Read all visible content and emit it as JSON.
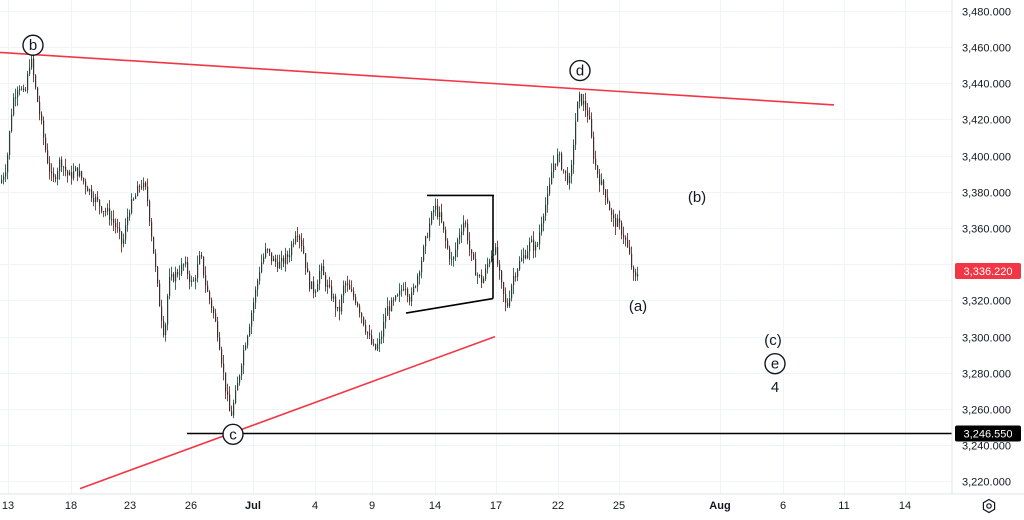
{
  "chart_data": {
    "type": "candlestick",
    "title": "",
    "price_scale": {
      "ticks": [
        3480,
        3460,
        3440,
        3420,
        3400,
        3380,
        3360,
        3340,
        3320,
        3300,
        3280,
        3260,
        3240,
        3220
      ],
      "tick_labels": [
        "3,480.000",
        "3,460.000",
        "3,440.000",
        "3,420.000",
        "3,400.000",
        "3,380.000",
        "3,360.000",
        "",
        "3,320.000",
        "3,300.000",
        "3,280.000",
        "3,260.000",
        "3,240.000",
        "3,220.000"
      ],
      "range": [
        3213,
        3486
      ]
    },
    "time_scale": {
      "labels": [
        "13",
        "18",
        "23",
        "26",
        "Jul",
        "4",
        "9",
        "14",
        "17",
        "22",
        "25",
        "Aug",
        "6",
        "11",
        "14"
      ],
      "bold": [
        "Jul",
        "Aug"
      ]
    },
    "current_price": {
      "value": 3336.22,
      "label": "3,336.220",
      "color": "#f23645"
    },
    "horizontal_line": {
      "value": 3246.55,
      "label": "3,246.550",
      "color": "#000000"
    },
    "trendlines": [
      {
        "name": "upper",
        "color": "#f23645",
        "from": [
          0,
          3457
        ],
        "to": [
          834,
          3428
        ]
      },
      {
        "name": "lower",
        "color": "#f23645",
        "from": [
          80,
          3216
        ],
        "to": [
          495,
          3300
        ]
      },
      {
        "name": "flag-top",
        "color": "#000000",
        "from": [
          427,
          3378
        ],
        "to": [
          494,
          3378
        ]
      },
      {
        "name": "flag-bottom",
        "color": "#000000",
        "from": [
          406,
          3313
        ],
        "to": [
          493,
          3321
        ]
      },
      {
        "name": "flag-side",
        "color": "#000000",
        "from": [
          493,
          3378
        ],
        "to": [
          493,
          3321
        ]
      }
    ],
    "wave_labels": [
      {
        "text": "b",
        "circled": true,
        "at": [
          33,
          3461
        ]
      },
      {
        "text": "d",
        "circled": true,
        "at": [
          580,
          3447
        ]
      },
      {
        "text": "c",
        "circled": true,
        "at": [
          233,
          3246
        ]
      },
      {
        "text": "(b)",
        "circled": false,
        "at": [
          697,
          3377
        ]
      },
      {
        "text": "(a)",
        "circled": false,
        "at": [
          638,
          3317
        ]
      },
      {
        "text": "(c)",
        "circled": false,
        "at": [
          773,
          3298
        ]
      },
      {
        "text": "e",
        "circled": true,
        "at": [
          775,
          3285
        ]
      },
      {
        "text": "4",
        "circled": false,
        "at": [
          775,
          3272
        ]
      }
    ],
    "price_path": [
      [
        0,
        3385
      ],
      [
        6,
        3395
      ],
      [
        12,
        3430
      ],
      [
        18,
        3440
      ],
      [
        24,
        3432
      ],
      [
        30,
        3455
      ],
      [
        34,
        3440
      ],
      [
        40,
        3420
      ],
      [
        46,
        3400
      ],
      [
        52,
        3385
      ],
      [
        60,
        3398
      ],
      [
        68,
        3388
      ],
      [
        76,
        3392
      ],
      [
        84,
        3385
      ],
      [
        92,
        3378
      ],
      [
        100,
        3372
      ],
      [
        108,
        3368
      ],
      [
        116,
        3360
      ],
      [
        122,
        3350
      ],
      [
        128,
        3370
      ],
      [
        134,
        3376
      ],
      [
        140,
        3385
      ],
      [
        146,
        3380
      ],
      [
        152,
        3352
      ],
      [
        158,
        3322
      ],
      [
        164,
        3300
      ],
      [
        168,
        3330
      ],
      [
        176,
        3335
      ],
      [
        184,
        3340
      ],
      [
        192,
        3328
      ],
      [
        200,
        3345
      ],
      [
        206,
        3326
      ],
      [
        212,
        3315
      ],
      [
        218,
        3300
      ],
      [
        224,
        3275
      ],
      [
        230,
        3255
      ],
      [
        236,
        3270
      ],
      [
        242,
        3290
      ],
      [
        248,
        3305
      ],
      [
        254,
        3322
      ],
      [
        260,
        3340
      ],
      [
        266,
        3348
      ],
      [
        272,
        3342
      ],
      [
        280,
        3340
      ],
      [
        288,
        3345
      ],
      [
        296,
        3360
      ],
      [
        302,
        3350
      ],
      [
        308,
        3330
      ],
      [
        314,
        3325
      ],
      [
        320,
        3338
      ],
      [
        326,
        3328
      ],
      [
        332,
        3322
      ],
      [
        338,
        3312
      ],
      [
        344,
        3330
      ],
      [
        350,
        3324
      ],
      [
        356,
        3320
      ],
      [
        362,
        3310
      ],
      [
        368,
        3300
      ],
      [
        374,
        3292
      ],
      [
        380,
        3298
      ],
      [
        386,
        3315
      ],
      [
        392,
        3318
      ],
      [
        398,
        3322
      ],
      [
        404,
        3330
      ],
      [
        410,
        3320
      ],
      [
        416,
        3332
      ],
      [
        422,
        3345
      ],
      [
        428,
        3360
      ],
      [
        434,
        3372
      ],
      [
        440,
        3365
      ],
      [
        446,
        3350
      ],
      [
        452,
        3340
      ],
      [
        458,
        3356
      ],
      [
        464,
        3365
      ],
      [
        470,
        3345
      ],
      [
        476,
        3335
      ],
      [
        482,
        3330
      ],
      [
        488,
        3342
      ],
      [
        494,
        3350
      ],
      [
        500,
        3330
      ],
      [
        506,
        3315
      ],
      [
        512,
        3332
      ],
      [
        518,
        3340
      ],
      [
        524,
        3345
      ],
      [
        530,
        3352
      ],
      [
        536,
        3348
      ],
      [
        542,
        3368
      ],
      [
        548,
        3378
      ],
      [
        552,
        3395
      ],
      [
        558,
        3400
      ],
      [
        564,
        3390
      ],
      [
        570,
        3385
      ],
      [
        574,
        3415
      ],
      [
        578,
        3432
      ],
      [
        582,
        3430
      ],
      [
        588,
        3422
      ],
      [
        594,
        3396
      ],
      [
        600,
        3385
      ],
      [
        606,
        3378
      ],
      [
        612,
        3364
      ],
      [
        618,
        3362
      ],
      [
        624,
        3355
      ],
      [
        630,
        3342
      ],
      [
        634,
        3330
      ],
      [
        638,
        3337
      ]
    ]
  },
  "ui": {
    "settings_icon": "gear-icon"
  }
}
